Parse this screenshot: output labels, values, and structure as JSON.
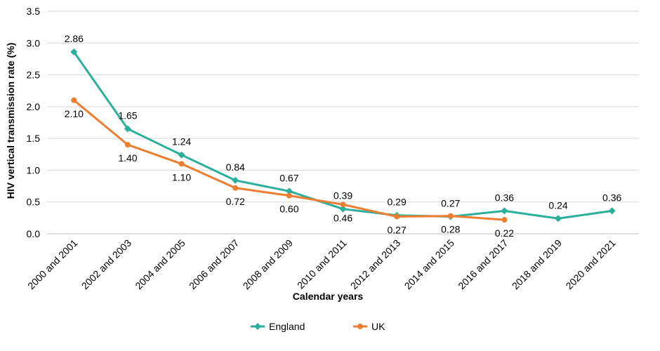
{
  "chart_data": {
    "type": "line",
    "categories": [
      "2000 and 2001",
      "2002 and 2003",
      "2004 and 2005",
      "2006 and 2007",
      "2008 and 2009",
      "2010 and 2011",
      "2012 and 2013",
      "2014 and 2015",
      "2016 and 2017",
      "2018 and 2019",
      "2020 and 2021"
    ],
    "series": [
      {
        "name": "England",
        "color": "#2ab09a",
        "marker": "diamond",
        "values": [
          2.86,
          1.65,
          1.24,
          0.84,
          0.67,
          0.39,
          0.29,
          0.27,
          0.36,
          0.24,
          0.36
        ],
        "labels": [
          "2.86",
          "1.65",
          "1.24",
          "0.84",
          "0.67",
          "0.39",
          "0.29",
          "0.27",
          "0.36",
          "0.24",
          "0.36"
        ],
        "label_position": "above"
      },
      {
        "name": "UK",
        "color": "#ed7d31",
        "marker": "circle",
        "values": [
          2.1,
          1.4,
          1.1,
          0.72,
          0.6,
          0.46,
          0.27,
          0.28,
          0.22,
          null,
          null
        ],
        "labels": [
          "2.10",
          "1.40",
          "1.10",
          "0.72",
          "0.60",
          "0.46",
          "0.27",
          "0.28",
          "0.22",
          null,
          null
        ],
        "label_position": "below"
      }
    ],
    "xlabel": "Calendar years",
    "ylabel": "HIV vertical transmission rate (%)",
    "ylim": [
      0,
      3.5
    ],
    "yticks": [
      "0.0",
      "0.5",
      "1.0",
      "1.5",
      "2.0",
      "2.5",
      "3.0",
      "3.5"
    ],
    "grid": true,
    "legend_position": "bottom"
  }
}
